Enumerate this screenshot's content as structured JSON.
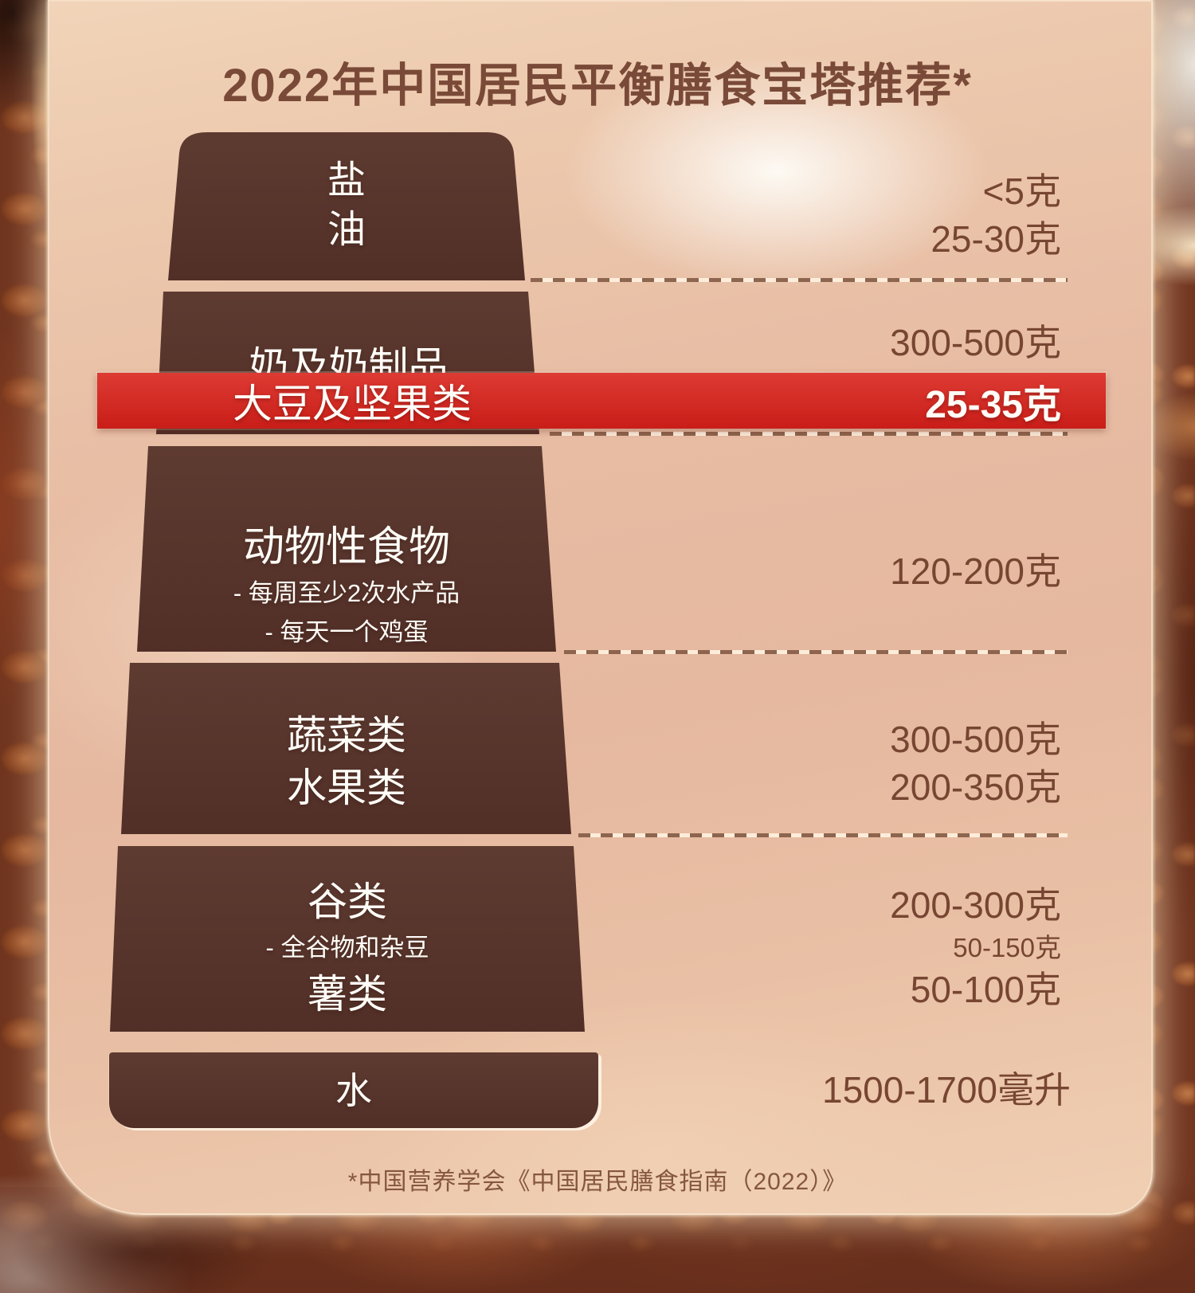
{
  "title": "2022年中国居民平衡膳食宝塔推荐*",
  "footnote": "*中国营养学会《中国居民膳食指南（2022）》",
  "colors": {
    "section_brown": "#573129",
    "highlight_red": "#d1241c",
    "card_beige": "#e8c0a6",
    "value_text_brown": "#774632",
    "label_text_white": "#fffdf8"
  },
  "pyramid": {
    "levels": [
      {
        "id": "salt-oil",
        "rows": [
          {
            "label": "盐",
            "value": "<5克"
          },
          {
            "label": "油",
            "value": "25-30克"
          }
        ]
      },
      {
        "id": "dairy",
        "label": "奶及奶制品",
        "value": "300-500克"
      },
      {
        "id": "soy-nuts",
        "highlighted": true,
        "label": "大豆及坚果类",
        "value": "25-35克"
      },
      {
        "id": "animal-foods",
        "label": "动物性食物",
        "notes": [
          "- 每周至少2次水产品",
          "- 每天一个鸡蛋"
        ],
        "value": "120-200克"
      },
      {
        "id": "veg-fruit",
        "rows": [
          {
            "label": "蔬菜类",
            "value": "300-500克"
          },
          {
            "label": "水果类",
            "value": "200-350克"
          }
        ]
      },
      {
        "id": "grains-tubers",
        "rows": [
          {
            "label": "谷类",
            "value": "200-300克"
          },
          {
            "label": "- 全谷物和杂豆",
            "value": "50-150克",
            "small": true
          },
          {
            "label": "薯类",
            "value": "50-100克"
          }
        ]
      },
      {
        "id": "water",
        "label": "水",
        "value": "1500-1700毫升"
      }
    ]
  }
}
